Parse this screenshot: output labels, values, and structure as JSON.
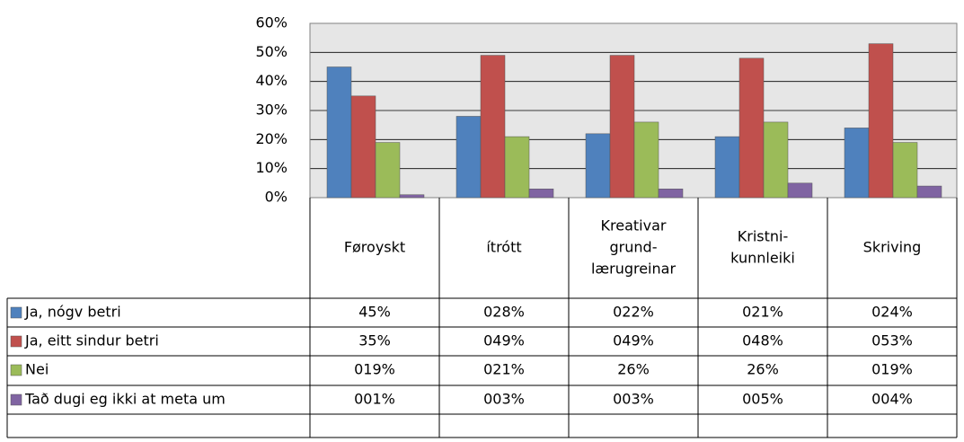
{
  "chart_data": {
    "type": "bar",
    "categories": [
      [
        "Føroyskt"
      ],
      [
        "ítrótt"
      ],
      [
        "Kreativar",
        "grund-",
        "lærugreinar"
      ],
      [
        "Kristni-",
        "kunnleiki"
      ],
      [
        "Skriving"
      ]
    ],
    "series": [
      {
        "name": "Ja, nógv betri",
        "color": "#4f81bd",
        "values": [
          45,
          28,
          22,
          21,
          24
        ],
        "value_labels": [
          "45%",
          "028%",
          "022%",
          "021%",
          "024%"
        ]
      },
      {
        "name": "Ja, eitt sindur betri",
        "color": "#c0504d",
        "values": [
          35,
          49,
          49,
          48,
          53
        ],
        "value_labels": [
          "35%",
          "049%",
          "049%",
          "048%",
          "053%"
        ]
      },
      {
        "name": "Nei",
        "color": "#9bbb59",
        "values": [
          19,
          21,
          26,
          26,
          19
        ],
        "value_labels": [
          "019%",
          "021%",
          "26%",
          "26%",
          "019%"
        ]
      },
      {
        "name": "Tað dugi eg ikki at meta um",
        "color": "#8064a2",
        "values": [
          1,
          3,
          3,
          5,
          4
        ],
        "value_labels": [
          "001%",
          "003%",
          "003%",
          "005%",
          "004%"
        ]
      }
    ],
    "ylim": [
      0,
      60
    ],
    "yticks": [
      {
        "value": 0,
        "label": "0%"
      },
      {
        "value": 10,
        "label": "10%"
      },
      {
        "value": 20,
        "label": "20%"
      },
      {
        "value": 30,
        "label": "30%"
      },
      {
        "value": 40,
        "label": "40%"
      },
      {
        "value": 50,
        "label": "50%"
      },
      {
        "value": 60,
        "label": "60%"
      }
    ],
    "grid": true
  }
}
